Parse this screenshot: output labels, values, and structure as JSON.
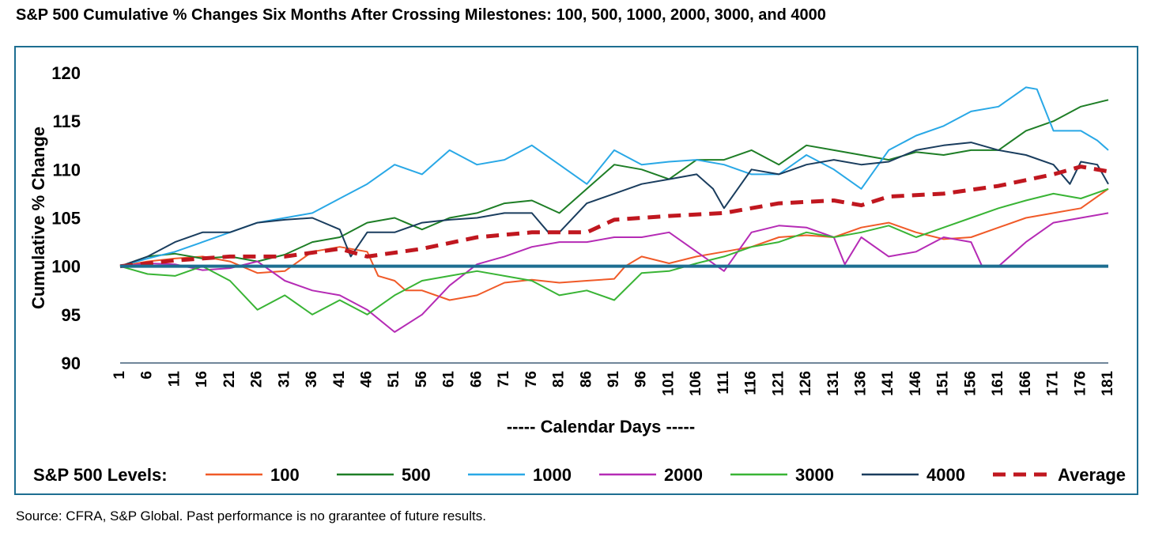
{
  "title": "S&P 500 Cumulative % Changes Six Months After Crossing Milestones: 100, 500, 1000, 2000, 3000, and 4000",
  "source": "Source: CFRA, S&P Global. Past performance is no grarantee of future results.",
  "legend_title": "S&P 500 Levels:",
  "chart_data": {
    "type": "line",
    "title": "S&P 500 Cumulative % Changes Six Months After Crossing Milestones: 100, 500, 1000, 2000, 3000, and 4000",
    "xlabel": "----- Calendar Days -----",
    "ylabel": "Cumulative % Change",
    "ylim": [
      90,
      120
    ],
    "yticks": [
      90,
      95,
      100,
      105,
      110,
      115,
      120
    ],
    "xlim": [
      1,
      181
    ],
    "xticks": [
      1,
      6,
      11,
      16,
      21,
      26,
      31,
      36,
      41,
      46,
      51,
      56,
      61,
      66,
      71,
      76,
      81,
      86,
      91,
      96,
      101,
      106,
      111,
      116,
      121,
      126,
      131,
      136,
      141,
      146,
      151,
      156,
      161,
      166,
      171,
      176,
      181
    ],
    "reference_line": 100,
    "reference_color": "#1d6e91",
    "grid": false,
    "legend_position": "bottom",
    "series": [
      {
        "name": "100",
        "color": "#f05a28",
        "dashed": false,
        "points": [
          [
            1,
            100
          ],
          [
            6,
            100.5
          ],
          [
            11,
            100.8
          ],
          [
            16,
            101
          ],
          [
            21,
            100.5
          ],
          [
            26,
            99.3
          ],
          [
            31,
            99.5
          ],
          [
            36,
            101.5
          ],
          [
            41,
            102
          ],
          [
            46,
            101.5
          ],
          [
            48,
            99
          ],
          [
            51,
            98.5
          ],
          [
            53,
            97.5
          ],
          [
            56,
            97.5
          ],
          [
            61,
            96.5
          ],
          [
            66,
            97
          ],
          [
            71,
            98.3
          ],
          [
            76,
            98.6
          ],
          [
            81,
            98.3
          ],
          [
            86,
            98.5
          ],
          [
            91,
            98.7
          ],
          [
            93,
            100
          ],
          [
            96,
            101
          ],
          [
            101,
            100.3
          ],
          [
            106,
            101
          ],
          [
            111,
            101.5
          ],
          [
            116,
            102
          ],
          [
            121,
            103
          ],
          [
            126,
            103.2
          ],
          [
            131,
            103
          ],
          [
            136,
            104
          ],
          [
            141,
            104.5
          ],
          [
            146,
            103.5
          ],
          [
            151,
            102.8
          ],
          [
            156,
            103
          ],
          [
            161,
            104
          ],
          [
            166,
            105
          ],
          [
            171,
            105.5
          ],
          [
            176,
            106
          ],
          [
            181,
            108
          ]
        ]
      },
      {
        "name": "500",
        "color": "#1e7e26",
        "dashed": false,
        "points": [
          [
            1,
            100
          ],
          [
            6,
            101
          ],
          [
            11,
            101.3
          ],
          [
            16,
            100.8
          ],
          [
            21,
            101
          ],
          [
            26,
            100.5
          ],
          [
            31,
            101.2
          ],
          [
            36,
            102.5
          ],
          [
            41,
            103
          ],
          [
            46,
            104.5
          ],
          [
            51,
            105
          ],
          [
            56,
            103.8
          ],
          [
            61,
            105
          ],
          [
            66,
            105.5
          ],
          [
            71,
            106.5
          ],
          [
            76,
            106.8
          ],
          [
            81,
            105.5
          ],
          [
            86,
            108
          ],
          [
            91,
            110.5
          ],
          [
            96,
            110
          ],
          [
            101,
            109
          ],
          [
            106,
            111
          ],
          [
            111,
            111
          ],
          [
            116,
            112
          ],
          [
            121,
            110.5
          ],
          [
            126,
            112.5
          ],
          [
            131,
            112
          ],
          [
            136,
            111.5
          ],
          [
            141,
            111
          ],
          [
            146,
            111.8
          ],
          [
            151,
            111.5
          ],
          [
            156,
            112
          ],
          [
            161,
            112
          ],
          [
            166,
            114
          ],
          [
            171,
            115
          ],
          [
            176,
            116.5
          ],
          [
            181,
            117.2
          ]
        ]
      },
      {
        "name": "1000",
        "color": "#29a8e6",
        "dashed": false,
        "points": [
          [
            1,
            100
          ],
          [
            6,
            100.8
          ],
          [
            11,
            101.5
          ],
          [
            16,
            102.5
          ],
          [
            21,
            103.5
          ],
          [
            26,
            104.5
          ],
          [
            31,
            105
          ],
          [
            36,
            105.5
          ],
          [
            41,
            107
          ],
          [
            46,
            108.5
          ],
          [
            51,
            110.5
          ],
          [
            56,
            109.5
          ],
          [
            61,
            112
          ],
          [
            66,
            110.5
          ],
          [
            71,
            111
          ],
          [
            76,
            112.5
          ],
          [
            81,
            110.5
          ],
          [
            86,
            108.5
          ],
          [
            91,
            112
          ],
          [
            96,
            110.5
          ],
          [
            101,
            110.8
          ],
          [
            106,
            111
          ],
          [
            111,
            110.5
          ],
          [
            116,
            109.5
          ],
          [
            121,
            109.5
          ],
          [
            126,
            111.5
          ],
          [
            131,
            110
          ],
          [
            136,
            108
          ],
          [
            141,
            112
          ],
          [
            146,
            113.5
          ],
          [
            151,
            114.5
          ],
          [
            156,
            116
          ],
          [
            161,
            116.5
          ],
          [
            166,
            118.5
          ],
          [
            168,
            118.3
          ],
          [
            171,
            114
          ],
          [
            176,
            114
          ],
          [
            179,
            113
          ],
          [
            181,
            112
          ]
        ]
      },
      {
        "name": "2000",
        "color": "#b52bb5",
        "dashed": false,
        "points": [
          [
            1,
            100
          ],
          [
            6,
            100.3
          ],
          [
            11,
            100.2
          ],
          [
            16,
            99.6
          ],
          [
            21,
            99.8
          ],
          [
            26,
            100.5
          ],
          [
            31,
            98.5
          ],
          [
            36,
            97.5
          ],
          [
            41,
            97
          ],
          [
            46,
            95.5
          ],
          [
            51,
            93.2
          ],
          [
            56,
            95
          ],
          [
            61,
            98
          ],
          [
            66,
            100.2
          ],
          [
            71,
            101
          ],
          [
            76,
            102
          ],
          [
            81,
            102.5
          ],
          [
            86,
            102.5
          ],
          [
            91,
            103
          ],
          [
            96,
            103
          ],
          [
            101,
            103.5
          ],
          [
            106,
            101.5
          ],
          [
            111,
            99.5
          ],
          [
            116,
            103.5
          ],
          [
            121,
            104.2
          ],
          [
            126,
            104
          ],
          [
            131,
            103
          ],
          [
            133,
            100.2
          ],
          [
            136,
            103
          ],
          [
            141,
            101
          ],
          [
            146,
            101.5
          ],
          [
            151,
            103
          ],
          [
            156,
            102.5
          ],
          [
            158,
            100
          ],
          [
            161,
            100
          ],
          [
            166,
            102.5
          ],
          [
            171,
            104.5
          ],
          [
            176,
            105
          ],
          [
            181,
            105.5
          ]
        ]
      },
      {
        "name": "3000",
        "color": "#39b435",
        "dashed": false,
        "points": [
          [
            1,
            100
          ],
          [
            6,
            99.2
          ],
          [
            11,
            99
          ],
          [
            16,
            100
          ],
          [
            21,
            98.5
          ],
          [
            26,
            95.5
          ],
          [
            31,
            97
          ],
          [
            36,
            95
          ],
          [
            41,
            96.5
          ],
          [
            46,
            95
          ],
          [
            51,
            97
          ],
          [
            56,
            98.5
          ],
          [
            61,
            99
          ],
          [
            66,
            99.5
          ],
          [
            71,
            99
          ],
          [
            76,
            98.5
          ],
          [
            81,
            97
          ],
          [
            86,
            97.5
          ],
          [
            91,
            96.5
          ],
          [
            96,
            99.3
          ],
          [
            101,
            99.5
          ],
          [
            106,
            100.3
          ],
          [
            111,
            101
          ],
          [
            116,
            102
          ],
          [
            121,
            102.5
          ],
          [
            126,
            103.5
          ],
          [
            131,
            103
          ],
          [
            136,
            103.5
          ],
          [
            141,
            104.2
          ],
          [
            146,
            103
          ],
          [
            151,
            104
          ],
          [
            156,
            105
          ],
          [
            161,
            106
          ],
          [
            166,
            106.8
          ],
          [
            171,
            107.5
          ],
          [
            176,
            107
          ],
          [
            181,
            108
          ]
        ]
      },
      {
        "name": "4000",
        "color": "#1a3d5e",
        "dashed": false,
        "points": [
          [
            1,
            100
          ],
          [
            6,
            101
          ],
          [
            11,
            102.5
          ],
          [
            16,
            103.5
          ],
          [
            21,
            103.5
          ],
          [
            26,
            104.5
          ],
          [
            31,
            104.8
          ],
          [
            36,
            105
          ],
          [
            41,
            103.8
          ],
          [
            43,
            101
          ],
          [
            46,
            103.5
          ],
          [
            51,
            103.5
          ],
          [
            56,
            104.5
          ],
          [
            61,
            104.8
          ],
          [
            66,
            105
          ],
          [
            71,
            105.5
          ],
          [
            76,
            105.5
          ],
          [
            79,
            103.5
          ],
          [
            81,
            103.5
          ],
          [
            86,
            106.5
          ],
          [
            91,
            107.5
          ],
          [
            96,
            108.5
          ],
          [
            101,
            109
          ],
          [
            106,
            109.5
          ],
          [
            109,
            108
          ],
          [
            111,
            106
          ],
          [
            116,
            110
          ],
          [
            121,
            109.5
          ],
          [
            126,
            110.5
          ],
          [
            131,
            111
          ],
          [
            136,
            110.5
          ],
          [
            141,
            110.8
          ],
          [
            146,
            112
          ],
          [
            151,
            112.5
          ],
          [
            156,
            112.8
          ],
          [
            161,
            112
          ],
          [
            166,
            111.5
          ],
          [
            171,
            110.5
          ],
          [
            174,
            108.5
          ],
          [
            176,
            110.8
          ],
          [
            179,
            110.5
          ],
          [
            181,
            108.5
          ]
        ]
      },
      {
        "name": "Average",
        "color": "#c0171f",
        "dashed": true,
        "points": [
          [
            1,
            100
          ],
          [
            11,
            100.6
          ],
          [
            21,
            101
          ],
          [
            31,
            101
          ],
          [
            41,
            101.8
          ],
          [
            46,
            101
          ],
          [
            56,
            101.8
          ],
          [
            66,
            103
          ],
          [
            76,
            103.5
          ],
          [
            86,
            103.5
          ],
          [
            91,
            104.8
          ],
          [
            101,
            105.2
          ],
          [
            111,
            105.5
          ],
          [
            121,
            106.5
          ],
          [
            131,
            106.8
          ],
          [
            136,
            106.3
          ],
          [
            141,
            107.2
          ],
          [
            151,
            107.5
          ],
          [
            161,
            108.3
          ],
          [
            171,
            109.5
          ],
          [
            176,
            110.3
          ],
          [
            181,
            109.8
          ]
        ]
      }
    ]
  }
}
